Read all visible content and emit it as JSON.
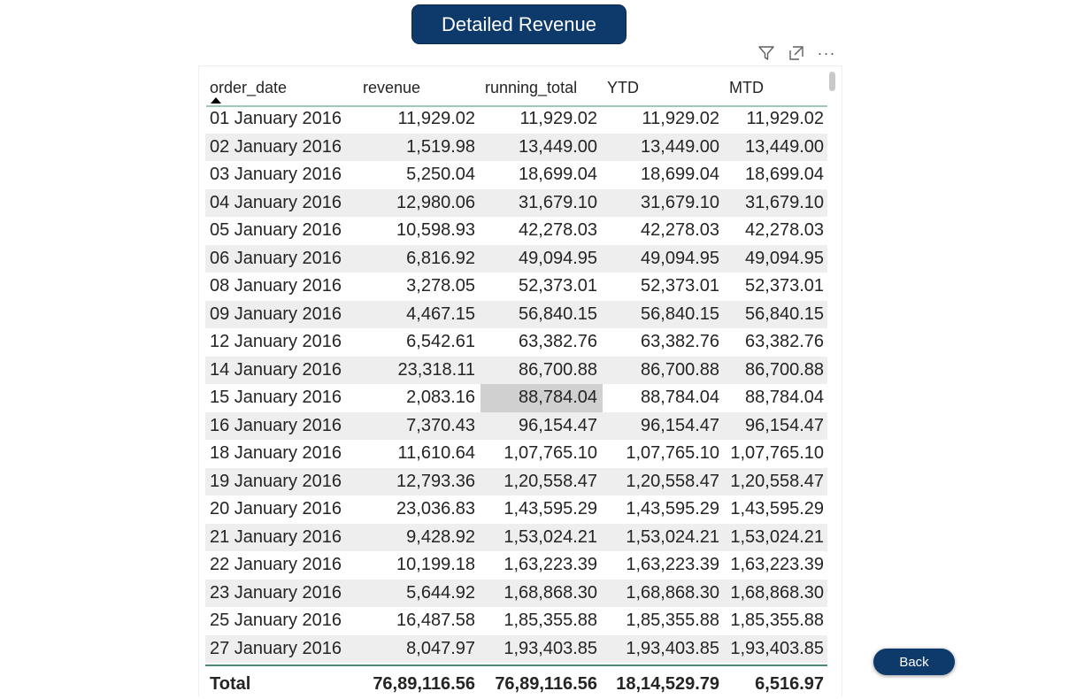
{
  "title_button": {
    "label": "Detailed Revenue"
  },
  "toolbar": {
    "filter_icon": "filter-icon",
    "focus_icon": "focus-mode-icon",
    "more_label": "···"
  },
  "table": {
    "headers": [
      "order_date",
      "revenue",
      "running_total",
      "YTD",
      "MTD"
    ],
    "rows": [
      [
        "01 January 2016",
        "11,929.02",
        "11,929.02",
        "11,929.02",
        "11,929.02"
      ],
      [
        "02 January 2016",
        "1,519.98",
        "13,449.00",
        "13,449.00",
        "13,449.00"
      ],
      [
        "03 January 2016",
        "5,250.04",
        "18,699.04",
        "18,699.04",
        "18,699.04"
      ],
      [
        "04 January 2016",
        "12,980.06",
        "31,679.10",
        "31,679.10",
        "31,679.10"
      ],
      [
        "05 January 2016",
        "10,598.93",
        "42,278.03",
        "42,278.03",
        "42,278.03"
      ],
      [
        "06 January 2016",
        "6,816.92",
        "49,094.95",
        "49,094.95",
        "49,094.95"
      ],
      [
        "08 January 2016",
        "3,278.05",
        "52,373.01",
        "52,373.01",
        "52,373.01"
      ],
      [
        "09 January 2016",
        "4,467.15",
        "56,840.15",
        "56,840.15",
        "56,840.15"
      ],
      [
        "12 January 2016",
        "6,542.61",
        "63,382.76",
        "63,382.76",
        "63,382.76"
      ],
      [
        "14 January 2016",
        "23,318.11",
        "86,700.88",
        "86,700.88",
        "86,700.88"
      ],
      [
        "15 January 2016",
        "2,083.16",
        "88,784.04",
        "88,784.04",
        "88,784.04"
      ],
      [
        "16 January 2016",
        "7,370.43",
        "96,154.47",
        "96,154.47",
        "96,154.47"
      ],
      [
        "18 January 2016",
        "11,610.64",
        "1,07,765.10",
        "1,07,765.10",
        "1,07,765.10"
      ],
      [
        "19 January 2016",
        "12,793.36",
        "1,20,558.47",
        "1,20,558.47",
        "1,20,558.47"
      ],
      [
        "20 January 2016",
        "23,036.83",
        "1,43,595.29",
        "1,43,595.29",
        "1,43,595.29"
      ],
      [
        "21 January 2016",
        "9,428.92",
        "1,53,024.21",
        "1,53,024.21",
        "1,53,024.21"
      ],
      [
        "22 January 2016",
        "10,199.18",
        "1,63,223.39",
        "1,63,223.39",
        "1,63,223.39"
      ],
      [
        "23 January 2016",
        "5,644.92",
        "1,68,868.30",
        "1,68,868.30",
        "1,68,868.30"
      ],
      [
        "25 January 2016",
        "16,487.58",
        "1,85,355.88",
        "1,85,355.88",
        "1,85,355.88"
      ],
      [
        "27 January 2016",
        "8,047.97",
        "1,93,403.85",
        "1,93,403.85",
        "1,93,403.85"
      ]
    ],
    "totals": [
      "Total",
      "76,89,116.56",
      "76,89,116.56",
      "18,14,529.79",
      "6,516.97"
    ]
  },
  "back_button": {
    "label": "Back"
  },
  "colors": {
    "brand": "#0e3a6b",
    "header_rule": "#9cc9bb",
    "total_rule": "#4a8a76",
    "row_alt": "#eeeeee",
    "cell_highlight": "#d0d0d0"
  }
}
